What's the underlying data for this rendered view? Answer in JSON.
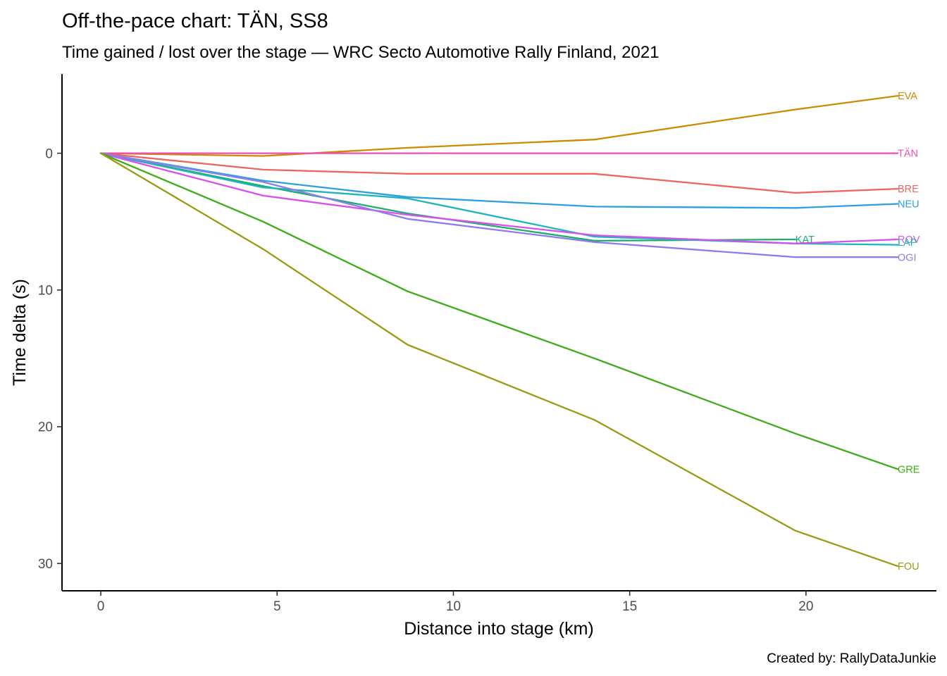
{
  "chart_data": {
    "type": "line",
    "title": "Off-the-pace chart: TÄN, SS8",
    "subtitle": "Time gained / lost over the stage — WRC Secto Automotive Rally Finland, 2021",
    "xlabel": "Distance into stage (km)",
    "ylabel": "Time delta (s)",
    "caption": "Created by: RallyDataJunkie",
    "xlim": [
      -1.1,
      23.7
    ],
    "ylim": [
      -5.8,
      32.0
    ],
    "y_reversed": true,
    "xticks": [
      0,
      5,
      10,
      15,
      20
    ],
    "yticks": [
      0,
      10,
      20,
      30
    ],
    "grid": false,
    "legend": "none (direct line labels)",
    "series": [
      {
        "name": "EVA",
        "color": "#CD8A00",
        "x": [
          0,
          4.6,
          8.7,
          14.0,
          19.7,
          22.6
        ],
        "y": [
          0,
          0.2,
          -0.4,
          -1.0,
          -3.2,
          -4.2
        ]
      },
      {
        "name": "TÄN",
        "color": "#F04CB5",
        "x": [
          0,
          4.6,
          8.7,
          14.0,
          19.7,
          22.6
        ],
        "y": [
          0,
          0,
          0,
          0,
          0,
          0
        ]
      },
      {
        "name": "BRE",
        "color": "#EE6460",
        "x": [
          0,
          4.6,
          8.7,
          14.0,
          19.7,
          22.6
        ],
        "y": [
          0,
          1.2,
          1.5,
          1.5,
          2.9,
          2.6
        ]
      },
      {
        "name": "NEU",
        "color": "#2FA0DF",
        "x": [
          0,
          4.6,
          8.7,
          14.0,
          19.7,
          22.6
        ],
        "y": [
          0,
          2.0,
          3.2,
          3.9,
          4.0,
          3.7
        ]
      },
      {
        "name": "KAT",
        "color": "#19AE6C",
        "x": [
          0,
          4.6,
          8.7,
          14.0,
          19.7
        ],
        "y": [
          0,
          2.4,
          4.4,
          6.4,
          6.3
        ]
      },
      {
        "name": "LAP",
        "color": "#1CB5B9",
        "x": [
          0,
          4.6,
          8.7,
          14.0,
          19.7,
          22.6
        ],
        "y": [
          0,
          2.5,
          3.3,
          6.1,
          6.6,
          6.7
        ]
      },
      {
        "name": "ROV",
        "color": "#D850EE",
        "x": [
          0,
          4.6,
          8.7,
          14.0,
          19.7,
          22.6
        ],
        "y": [
          0,
          3.1,
          4.5,
          6.0,
          6.6,
          6.3
        ]
      },
      {
        "name": "OGI",
        "color": "#8F7CEC",
        "x": [
          0,
          4.6,
          8.7,
          14.0,
          19.7,
          22.6
        ],
        "y": [
          0,
          2.1,
          4.8,
          6.5,
          7.6,
          7.6
        ]
      },
      {
        "name": "GRE",
        "color": "#3BAD16",
        "x": [
          0,
          4.6,
          8.7,
          14.0,
          19.7,
          22.6
        ],
        "y": [
          0,
          5.0,
          10.1,
          15.0,
          20.5,
          23.1
        ]
      },
      {
        "name": "FOU",
        "color": "#9A9A14",
        "x": [
          0,
          4.6,
          8.7,
          14.0,
          19.7,
          22.6
        ],
        "y": [
          0,
          7.0,
          14.0,
          19.5,
          27.6,
          30.2
        ]
      }
    ],
    "labels": [
      {
        "text": "EVA",
        "series": "EVA",
        "x": 22.6,
        "y": -4.2
      },
      {
        "text": "TÄN",
        "series": "TÄN",
        "x": 22.6,
        "y": 0.0
      },
      {
        "text": "BRE",
        "series": "BRE",
        "x": 22.6,
        "y": 2.6
      },
      {
        "text": "NEU",
        "series": "NEU",
        "x": 22.6,
        "y": 3.7
      },
      {
        "text": "KAT",
        "series": "KAT",
        "x": 19.7,
        "y": 6.3
      },
      {
        "text": "ROV",
        "series": "ROV",
        "x": 22.6,
        "y": 6.3
      },
      {
        "text": "LAP",
        "series": "LAP",
        "x": 22.6,
        "y": 6.5
      },
      {
        "text": "OGI",
        "series": "OGI",
        "x": 22.6,
        "y": 7.6
      },
      {
        "text": "GRE",
        "series": "GRE",
        "x": 22.6,
        "y": 23.1
      },
      {
        "text": "FOU",
        "series": "FOU",
        "x": 22.6,
        "y": 30.2
      }
    ]
  }
}
